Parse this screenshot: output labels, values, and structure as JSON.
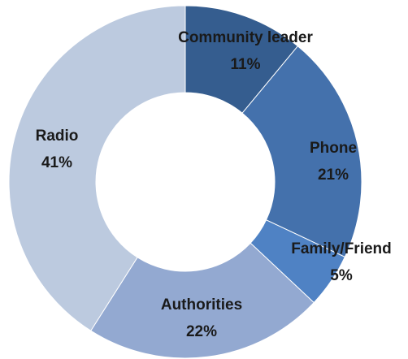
{
  "chart_data": {
    "type": "pie",
    "variant": "donut",
    "title": "",
    "categories": [
      "Community leader",
      "Phone",
      "Family/Friend",
      "Authorities",
      "Radio"
    ],
    "values": [
      11,
      21,
      5,
      22,
      41
    ],
    "value_labels": [
      "11%",
      "21%",
      "5%",
      "22%",
      "41%"
    ],
    "unit": "%",
    "colors": [
      "#355d8f",
      "#4471ac",
      "#4f82c4",
      "#93a9d1",
      "#bccadf"
    ],
    "legend": "none",
    "start_angle": "top (12 o'clock)",
    "direction": "clockwise"
  }
}
